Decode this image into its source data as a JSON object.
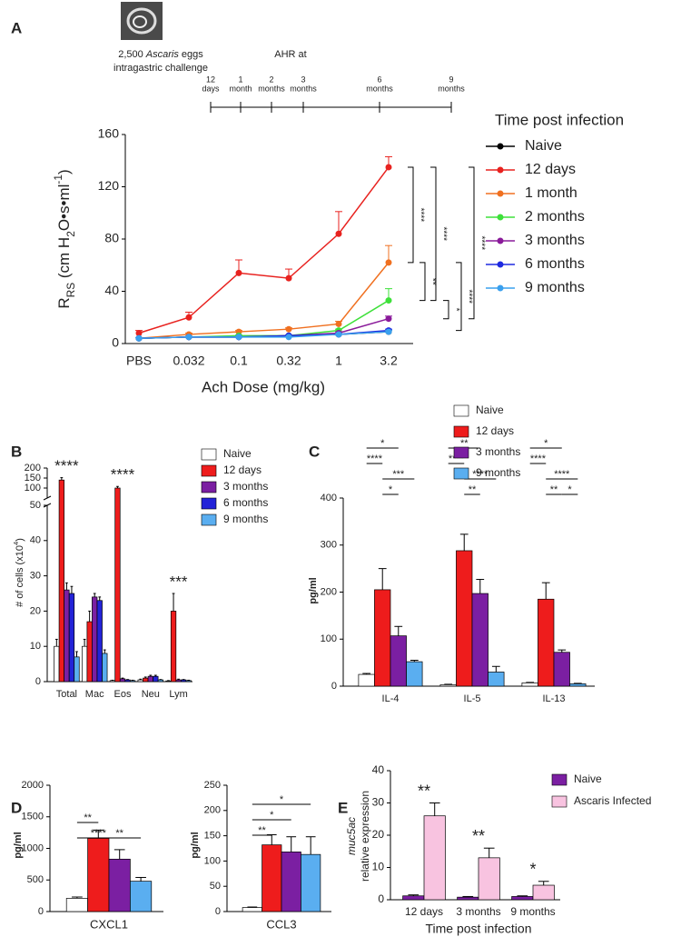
{
  "timeline": {
    "caption": [
      {
        "text": "2,500 "
      },
      {
        "text": "Ascaris",
        "style": "italic"
      },
      {
        "text": " eggs"
      }
    ],
    "caption_line2": "intragastric challenge",
    "heading": "AHR at",
    "points": [
      [
        "12",
        "days"
      ],
      [
        "1",
        "month"
      ],
      [
        "2",
        "months"
      ],
      [
        "3",
        "months"
      ],
      [
        "6",
        "months"
      ],
      [
        "9",
        "months"
      ]
    ]
  },
  "chart_data": [
    {
      "panel": "A",
      "type": "line",
      "categories": [
        "PBS",
        "0.032",
        "0.1",
        "0.32",
        "1",
        "3.2"
      ],
      "xlabel": "Ach Dose (mg/kg)",
      "ylabel": [
        {
          "text": "R"
        },
        {
          "text": "RS",
          "shift": "sub"
        },
        {
          "text": " (cm H"
        },
        {
          "text": "2",
          "shift": "sub"
        },
        {
          "text": "O•s•ml"
        },
        {
          "text": "-1",
          "shift": "super"
        },
        {
          "text": ")"
        }
      ],
      "ylim": [
        0,
        160
      ],
      "yticks": [
        0,
        40,
        80,
        120,
        160
      ],
      "legend_title": "Time post infection",
      "series": [
        {
          "name": "Naive",
          "color": "#000000",
          "values": [
            4,
            5,
            5,
            6,
            7,
            9
          ],
          "errors": [
            0.5,
            0.5,
            0.5,
            0.5,
            0.5,
            1
          ]
        },
        {
          "name": "12 days",
          "color": "#e8221f",
          "values": [
            8,
            20,
            54,
            50,
            84,
            135
          ],
          "errors": [
            2,
            4,
            10,
            7,
            17,
            8
          ]
        },
        {
          "name": "1 month",
          "color": "#f07020",
          "values": [
            4,
            7,
            9,
            11,
            15,
            62
          ],
          "errors": [
            0.5,
            1,
            1,
            1,
            2,
            13
          ]
        },
        {
          "name": "2 months",
          "color": "#3ee03a",
          "values": [
            4,
            5,
            6,
            6,
            10,
            33
          ],
          "errors": [
            0.5,
            0.5,
            0.5,
            0.5,
            1,
            9
          ]
        },
        {
          "name": "3 months",
          "color": "#8a1a9a",
          "values": [
            4,
            5,
            5,
            6,
            8,
            19
          ],
          "errors": [
            0.5,
            0.5,
            0.5,
            0.5,
            1,
            2
          ]
        },
        {
          "name": "6 months",
          "color": "#1e2ae0",
          "values": [
            4,
            5,
            5,
            6,
            7,
            10
          ],
          "errors": [
            0.5,
            0.5,
            0.5,
            0.5,
            0.5,
            1
          ]
        },
        {
          "name": "9 months",
          "color": "#3aa0ee",
          "values": [
            4,
            5,
            5,
            5,
            7,
            9
          ],
          "errors": [
            0.5,
            0.5,
            0.5,
            0.5,
            0.5,
            1
          ]
        }
      ],
      "significance": [
        "****",
        "****",
        "****",
        "**",
        "*",
        "****"
      ]
    },
    {
      "panel": "B",
      "type": "bar",
      "categories": [
        "Total",
        "Mac",
        "Eos",
        "Neu",
        "Lym"
      ],
      "ylabel": [
        {
          "text": "# of cells (x10"
        },
        {
          "text": "4",
          "shift": "super"
        },
        {
          "text": ")"
        }
      ],
      "ylim": [
        0,
        200
      ],
      "ybreak": 50,
      "yticks": [
        0,
        10,
        20,
        30,
        40,
        50,
        100,
        150,
        200
      ],
      "series": [
        {
          "name": "Naive",
          "color": "#ffffff",
          "values": [
            10,
            10,
            0.3,
            0.5,
            0.2
          ],
          "errors": [
            2,
            2,
            0.1,
            0.2,
            0.1
          ]
        },
        {
          "name": "12 days",
          "color": "#ee1c1c",
          "values": [
            140,
            17,
            100,
            1,
            20
          ],
          "errors": [
            12,
            3,
            8,
            0.3,
            5
          ]
        },
        {
          "name": "3 months",
          "color": "#7b1fa2",
          "values": [
            26,
            24,
            0.8,
            1.5,
            0.5
          ],
          "errors": [
            2,
            1,
            0.2,
            0.3,
            0.2
          ]
        },
        {
          "name": "6 months",
          "color": "#2323d8",
          "values": [
            25,
            23,
            0.5,
            1.5,
            0.5
          ],
          "errors": [
            2,
            1,
            0.1,
            0.3,
            0.1
          ]
        },
        {
          "name": "9 months",
          "color": "#5aaef0",
          "values": [
            7,
            8,
            0.3,
            0.5,
            0.3
          ],
          "errors": [
            1.5,
            1,
            0.1,
            0.1,
            0.1
          ]
        }
      ],
      "annotations": [
        "****",
        "****",
        "***"
      ]
    },
    {
      "panel": "C",
      "type": "bar",
      "categories": [
        "IL-4",
        "IL-5",
        "IL-13"
      ],
      "ylabel": [
        {
          "text": "pg/ml"
        }
      ],
      "ylim": [
        0,
        400
      ],
      "yticks": [
        0,
        100,
        200,
        300,
        400
      ],
      "series": [
        {
          "name": "Naive",
          "color": "#ffffff",
          "values": [
            25,
            3,
            7
          ],
          "errors": [
            2,
            1,
            1
          ]
        },
        {
          "name": "12 days",
          "color": "#ee1c1c",
          "values": [
            205,
            288,
            185
          ],
          "errors": [
            45,
            35,
            35
          ]
        },
        {
          "name": "3 months",
          "color": "#7b1fa2",
          "values": [
            107,
            197,
            72
          ],
          "errors": [
            20,
            30,
            5
          ]
        },
        {
          "name": "9 months",
          "color": "#5aaef0",
          "values": [
            52,
            30,
            5
          ],
          "errors": [
            3,
            12,
            1
          ]
        }
      ],
      "significance": [
        "*",
        "****",
        "***",
        "*",
        "**",
        "****",
        "****",
        "**",
        "*",
        "****",
        "****",
        "**",
        "*"
      ]
    },
    {
      "panel": "D",
      "type": "bar",
      "xlabel": "CXCL1",
      "ylabel": [
        {
          "text": "pg/ml"
        }
      ],
      "ylim": [
        0,
        2000
      ],
      "yticks": [
        0,
        500,
        1000,
        1500,
        2000
      ],
      "values": [
        210,
        1160,
        830,
        480
      ],
      "errors": [
        20,
        130,
        150,
        60
      ],
      "colors": [
        "#ffffff",
        "#ee1c1c",
        "#7b1fa2",
        "#5aaef0"
      ],
      "significance": [
        "**",
        "****",
        "**"
      ]
    },
    {
      "type": "bar",
      "xlabel": "CCL3",
      "ylabel": [
        {
          "text": "pg/ml"
        }
      ],
      "ylim": [
        0,
        250
      ],
      "yticks": [
        0,
        50,
        100,
        150,
        200,
        250
      ],
      "values": [
        8,
        132,
        118,
        113
      ],
      "errors": [
        1,
        20,
        30,
        35
      ],
      "colors": [
        "#ffffff",
        "#ee1c1c",
        "#7b1fa2",
        "#5aaef0"
      ],
      "significance": [
        "*",
        "*",
        "**"
      ]
    },
    {
      "panel": "E",
      "type": "bar",
      "categories": [
        "12 days",
        "3 months",
        "9 months"
      ],
      "xlabel": "Time post infection",
      "ylabel": [
        {
          "text": "muc5ac",
          "style": "italic"
        },
        {
          "text": "relative expression"
        }
      ],
      "ylim": [
        0,
        40
      ],
      "yticks": [
        0,
        10,
        20,
        30,
        40
      ],
      "series": [
        {
          "name": "Naive",
          "color": "#7b1fa2",
          "values": [
            1.2,
            0.8,
            1.0
          ],
          "errors": [
            0.3,
            0.2,
            0.2
          ]
        },
        {
          "name": "Ascaris Infected",
          "color": "#f8c3e0",
          "values": [
            26,
            13,
            4.5
          ],
          "errors": [
            4,
            3,
            1.2
          ]
        }
      ],
      "annotations": [
        "**",
        "**",
        "*"
      ]
    }
  ]
}
